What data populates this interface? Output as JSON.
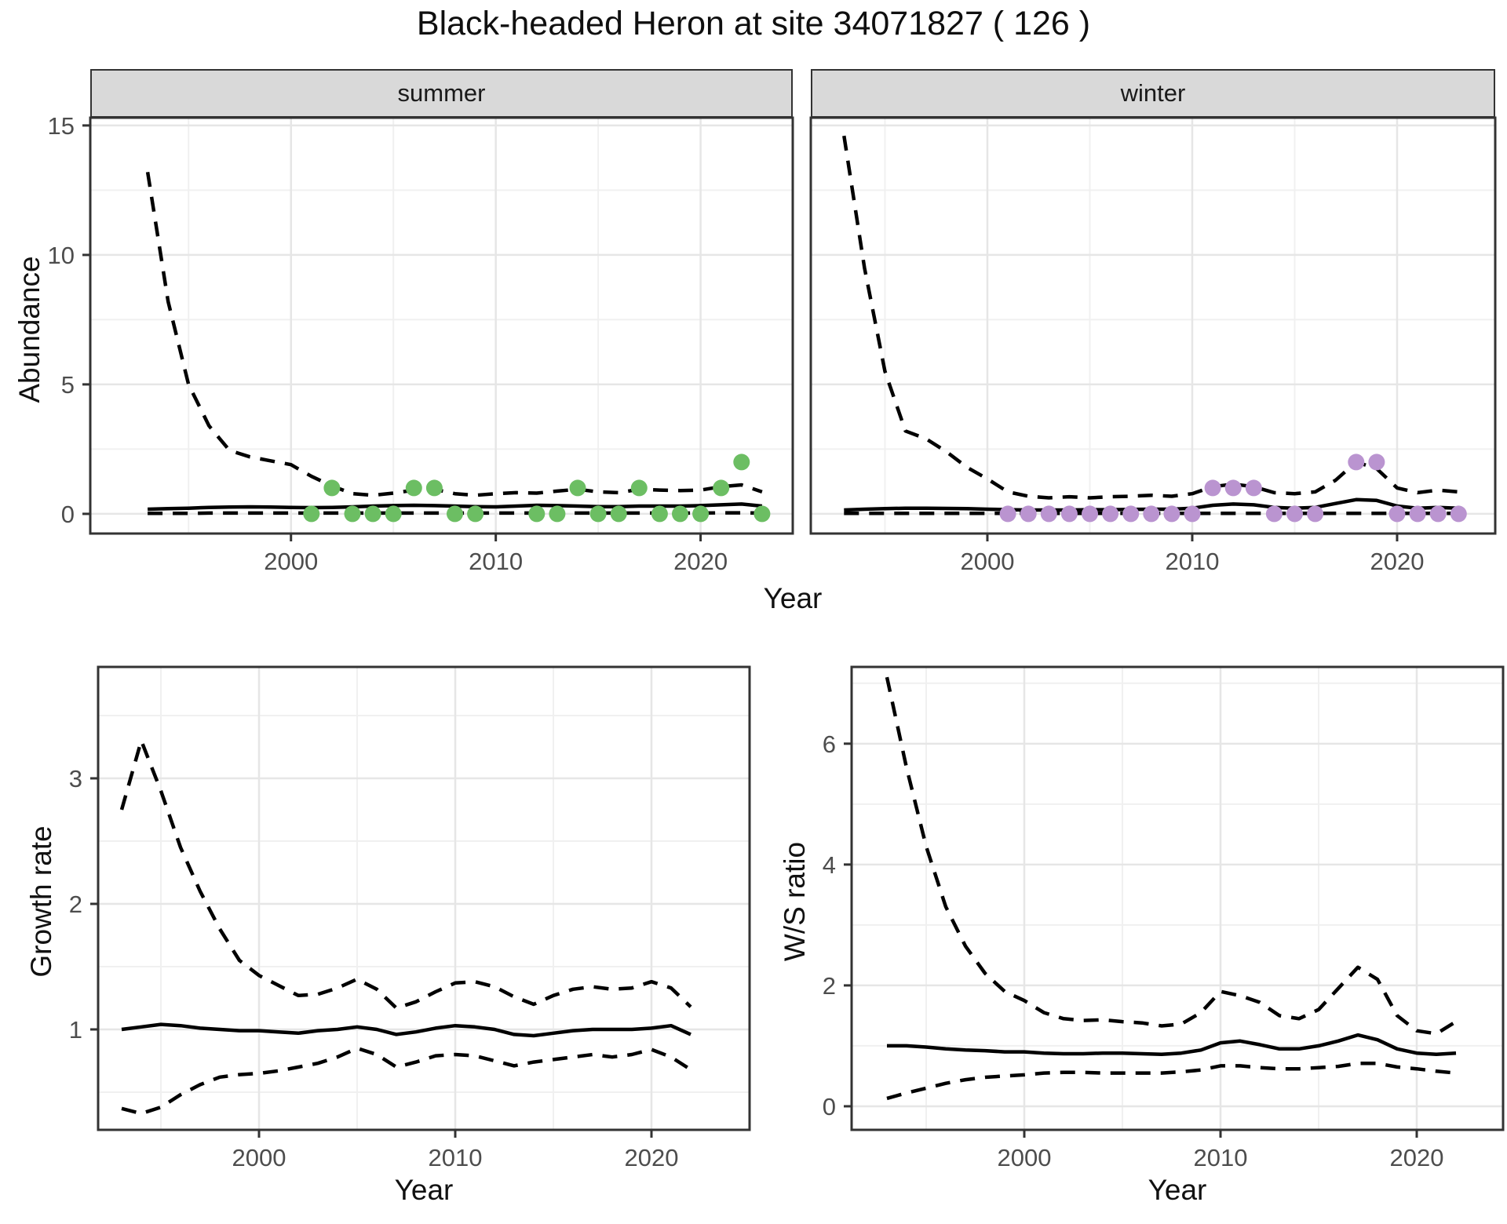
{
  "title": "Black-headed Heron at site 34071827 ( 126 )",
  "axes": {
    "abundance_label": "Abundance",
    "growth_label": "Growth rate",
    "ws_label": "W/S ratio",
    "year_label": "Year"
  },
  "colors": {
    "summer_point": "#6CBE63",
    "winter_point": "#BA94D0",
    "line": "#000000",
    "grid_major": "#e6e6e6",
    "grid_minor": "#f0f0f0",
    "panel_border": "#333333",
    "tick": "#333333",
    "axis_text": "#4d4d4d",
    "strip_bg": "#d9d9d9"
  },
  "chart_data": [
    {
      "id": "abundance_summer",
      "type": "line",
      "facet": "summer",
      "xlabel": "Year",
      "ylabel": "Abundance",
      "ylim": [
        0,
        15
      ],
      "yticks": [
        0,
        5,
        10,
        15
      ],
      "xticks": [
        2000,
        2010,
        2020
      ],
      "x": [
        1993,
        1994,
        1995,
        1996,
        1997,
        1998,
        1999,
        2000,
        2001,
        2002,
        2003,
        2004,
        2005,
        2006,
        2007,
        2008,
        2009,
        2010,
        2011,
        2012,
        2013,
        2014,
        2015,
        2016,
        2017,
        2018,
        2019,
        2020,
        2021,
        2022,
        2023
      ],
      "series": [
        {
          "name": "upper_ci",
          "style": "dashed",
          "values": [
            13.2,
            8.2,
            5.0,
            3.4,
            2.45,
            2.2,
            2.05,
            1.9,
            1.45,
            1.08,
            0.78,
            0.72,
            0.8,
            0.92,
            0.95,
            0.78,
            0.72,
            0.78,
            0.82,
            0.8,
            0.88,
            0.95,
            0.85,
            0.82,
            0.95,
            0.92,
            0.9,
            0.92,
            1.05,
            1.12,
            0.85
          ]
        },
        {
          "name": "mean",
          "style": "solid",
          "values": [
            0.18,
            0.2,
            0.22,
            0.25,
            0.26,
            0.27,
            0.26,
            0.25,
            0.24,
            0.25,
            0.27,
            0.3,
            0.32,
            0.33,
            0.32,
            0.3,
            0.28,
            0.27,
            0.3,
            0.33,
            0.32,
            0.3,
            0.28,
            0.28,
            0.3,
            0.3,
            0.3,
            0.32,
            0.35,
            0.38,
            0.3
          ]
        },
        {
          "name": "lower_ci",
          "style": "dashed",
          "values": [
            0.02,
            0.02,
            0.02,
            0.03,
            0.03,
            0.03,
            0.03,
            0.03,
            0.03,
            0.03,
            0.03,
            0.03,
            0.03,
            0.03,
            0.03,
            0.03,
            0.03,
            0.03,
            0.03,
            0.03,
            0.03,
            0.03,
            0.03,
            0.03,
            0.03,
            0.03,
            0.03,
            0.03,
            0.04,
            0.04,
            0.03
          ]
        }
      ],
      "points": {
        "name": "observed_counts",
        "color": "#6CBE63",
        "xy": [
          [
            2001,
            0
          ],
          [
            2002,
            1
          ],
          [
            2003,
            0
          ],
          [
            2004,
            0
          ],
          [
            2005,
            0
          ],
          [
            2006,
            1
          ],
          [
            2007,
            1
          ],
          [
            2008,
            0
          ],
          [
            2009,
            0
          ],
          [
            2012,
            0
          ],
          [
            2013,
            0
          ],
          [
            2014,
            1
          ],
          [
            2015,
            0
          ],
          [
            2016,
            0
          ],
          [
            2017,
            1
          ],
          [
            2018,
            0
          ],
          [
            2019,
            0
          ],
          [
            2020,
            0
          ],
          [
            2021,
            1
          ],
          [
            2022,
            2
          ],
          [
            2023,
            0
          ]
        ]
      }
    },
    {
      "id": "abundance_winter",
      "type": "line",
      "facet": "winter",
      "xlabel": "Year",
      "ylabel": "Abundance",
      "ylim": [
        0,
        15
      ],
      "yticks": [
        0,
        5,
        10,
        15
      ],
      "xticks": [
        2000,
        2010,
        2020
      ],
      "x": [
        1993,
        1994,
        1995,
        1996,
        1997,
        1998,
        1999,
        2000,
        2001,
        2002,
        2003,
        2004,
        2005,
        2006,
        2007,
        2008,
        2009,
        2010,
        2011,
        2012,
        2013,
        2014,
        2015,
        2016,
        2017,
        2018,
        2019,
        2020,
        2021,
        2022,
        2023
      ],
      "series": [
        {
          "name": "upper_ci",
          "style": "dashed",
          "values": [
            14.6,
            9.5,
            5.5,
            3.2,
            2.9,
            2.4,
            1.8,
            1.35,
            0.85,
            0.68,
            0.62,
            0.66,
            0.62,
            0.66,
            0.68,
            0.72,
            0.68,
            0.78,
            1.05,
            1.15,
            1.05,
            0.82,
            0.78,
            0.85,
            1.3,
            2.0,
            1.75,
            1.0,
            0.82,
            0.92,
            0.85
          ]
        },
        {
          "name": "mean",
          "style": "solid",
          "values": [
            0.15,
            0.18,
            0.2,
            0.22,
            0.22,
            0.21,
            0.2,
            0.18,
            0.16,
            0.15,
            0.15,
            0.15,
            0.16,
            0.16,
            0.17,
            0.18,
            0.18,
            0.22,
            0.33,
            0.38,
            0.35,
            0.25,
            0.22,
            0.25,
            0.4,
            0.55,
            0.52,
            0.3,
            0.22,
            0.25,
            0.22
          ]
        },
        {
          "name": "lower_ci",
          "style": "dashed",
          "values": [
            0.02,
            0.02,
            0.02,
            0.02,
            0.02,
            0.02,
            0.02,
            0.02,
            0.02,
            0.02,
            0.02,
            0.02,
            0.02,
            0.02,
            0.02,
            0.02,
            0.02,
            0.02,
            0.02,
            0.02,
            0.02,
            0.02,
            0.02,
            0.02,
            0.02,
            0.02,
            0.02,
            0.02,
            0.02,
            0.02,
            0.02
          ]
        }
      ],
      "points": {
        "name": "observed_counts",
        "color": "#BA94D0",
        "xy": [
          [
            2001,
            0
          ],
          [
            2002,
            0
          ],
          [
            2003,
            0
          ],
          [
            2004,
            0
          ],
          [
            2005,
            0
          ],
          [
            2006,
            0
          ],
          [
            2007,
            0
          ],
          [
            2008,
            0
          ],
          [
            2009,
            0
          ],
          [
            2010,
            0
          ],
          [
            2011,
            1
          ],
          [
            2012,
            1
          ],
          [
            2013,
            1
          ],
          [
            2014,
            0
          ],
          [
            2015,
            0
          ],
          [
            2016,
            0
          ],
          [
            2018,
            2
          ],
          [
            2019,
            2
          ],
          [
            2020,
            0
          ],
          [
            2021,
            0
          ],
          [
            2022,
            0
          ],
          [
            2023,
            0
          ]
        ]
      }
    },
    {
      "id": "growth_rate",
      "type": "line",
      "facet": "",
      "xlabel": "Year",
      "ylabel": "Growth rate",
      "ylim": [
        0.2,
        3.9
      ],
      "yticks": [
        1,
        2,
        3
      ],
      "xticks": [
        2000,
        2010,
        2020
      ],
      "x": [
        1993,
        1994,
        1995,
        1996,
        1997,
        1998,
        1999,
        2000,
        2001,
        2002,
        2003,
        2004,
        2005,
        2006,
        2007,
        2008,
        2009,
        2010,
        2011,
        2012,
        2013,
        2014,
        2015,
        2016,
        2017,
        2018,
        2019,
        2020,
        2021,
        2022
      ],
      "series": [
        {
          "name": "upper_ci",
          "style": "dashed",
          "values": [
            2.75,
            3.3,
            2.9,
            2.45,
            2.1,
            1.8,
            1.55,
            1.43,
            1.35,
            1.27,
            1.28,
            1.33,
            1.4,
            1.32,
            1.17,
            1.22,
            1.3,
            1.37,
            1.38,
            1.34,
            1.26,
            1.2,
            1.27,
            1.32,
            1.34,
            1.32,
            1.33,
            1.38,
            1.33,
            1.18
          ]
        },
        {
          "name": "mean",
          "style": "solid",
          "values": [
            1.0,
            1.02,
            1.04,
            1.03,
            1.01,
            1.0,
            0.99,
            0.99,
            0.98,
            0.97,
            0.99,
            1.0,
            1.02,
            1.0,
            0.96,
            0.98,
            1.01,
            1.03,
            1.02,
            1.0,
            0.96,
            0.95,
            0.97,
            0.99,
            1.0,
            1.0,
            1.0,
            1.01,
            1.03,
            0.96
          ]
        },
        {
          "name": "lower_ci",
          "style": "dashed",
          "values": [
            0.37,
            0.33,
            0.38,
            0.48,
            0.56,
            0.62,
            0.64,
            0.65,
            0.67,
            0.7,
            0.73,
            0.78,
            0.85,
            0.8,
            0.7,
            0.74,
            0.79,
            0.8,
            0.79,
            0.75,
            0.71,
            0.74,
            0.76,
            0.78,
            0.8,
            0.78,
            0.8,
            0.84,
            0.78,
            0.68
          ]
        }
      ]
    },
    {
      "id": "ws_ratio",
      "type": "line",
      "facet": "",
      "xlabel": "Year",
      "ylabel": "W/S ratio",
      "ylim": [
        0,
        7.3
      ],
      "yticks": [
        0,
        2,
        4,
        6
      ],
      "xticks": [
        2000,
        2010,
        2020
      ],
      "x": [
        1993,
        1994,
        1995,
        1996,
        1997,
        1998,
        1999,
        2000,
        2001,
        2002,
        2003,
        2004,
        2005,
        2006,
        2007,
        2008,
        2009,
        2010,
        2011,
        2012,
        2013,
        2014,
        2015,
        2016,
        2017,
        2018,
        2019,
        2020,
        2021,
        2022
      ],
      "series": [
        {
          "name": "upper_ci",
          "style": "dashed",
          "values": [
            7.1,
            5.6,
            4.3,
            3.3,
            2.65,
            2.2,
            1.9,
            1.75,
            1.55,
            1.45,
            1.42,
            1.43,
            1.4,
            1.38,
            1.33,
            1.36,
            1.55,
            1.9,
            1.83,
            1.72,
            1.5,
            1.45,
            1.6,
            1.95,
            2.3,
            2.1,
            1.5,
            1.25,
            1.2,
            1.4
          ]
        },
        {
          "name": "mean",
          "style": "solid",
          "values": [
            1.0,
            1.0,
            0.98,
            0.95,
            0.93,
            0.92,
            0.9,
            0.9,
            0.88,
            0.87,
            0.87,
            0.88,
            0.88,
            0.87,
            0.86,
            0.88,
            0.93,
            1.05,
            1.08,
            1.02,
            0.95,
            0.95,
            1.0,
            1.08,
            1.18,
            1.1,
            0.95,
            0.88,
            0.86,
            0.88
          ]
        },
        {
          "name": "lower_ci",
          "style": "dashed",
          "values": [
            0.13,
            0.22,
            0.3,
            0.38,
            0.44,
            0.48,
            0.5,
            0.52,
            0.55,
            0.56,
            0.56,
            0.55,
            0.55,
            0.55,
            0.55,
            0.57,
            0.6,
            0.67,
            0.67,
            0.64,
            0.62,
            0.62,
            0.64,
            0.66,
            0.71,
            0.71,
            0.65,
            0.62,
            0.58,
            0.55
          ]
        }
      ]
    }
  ]
}
